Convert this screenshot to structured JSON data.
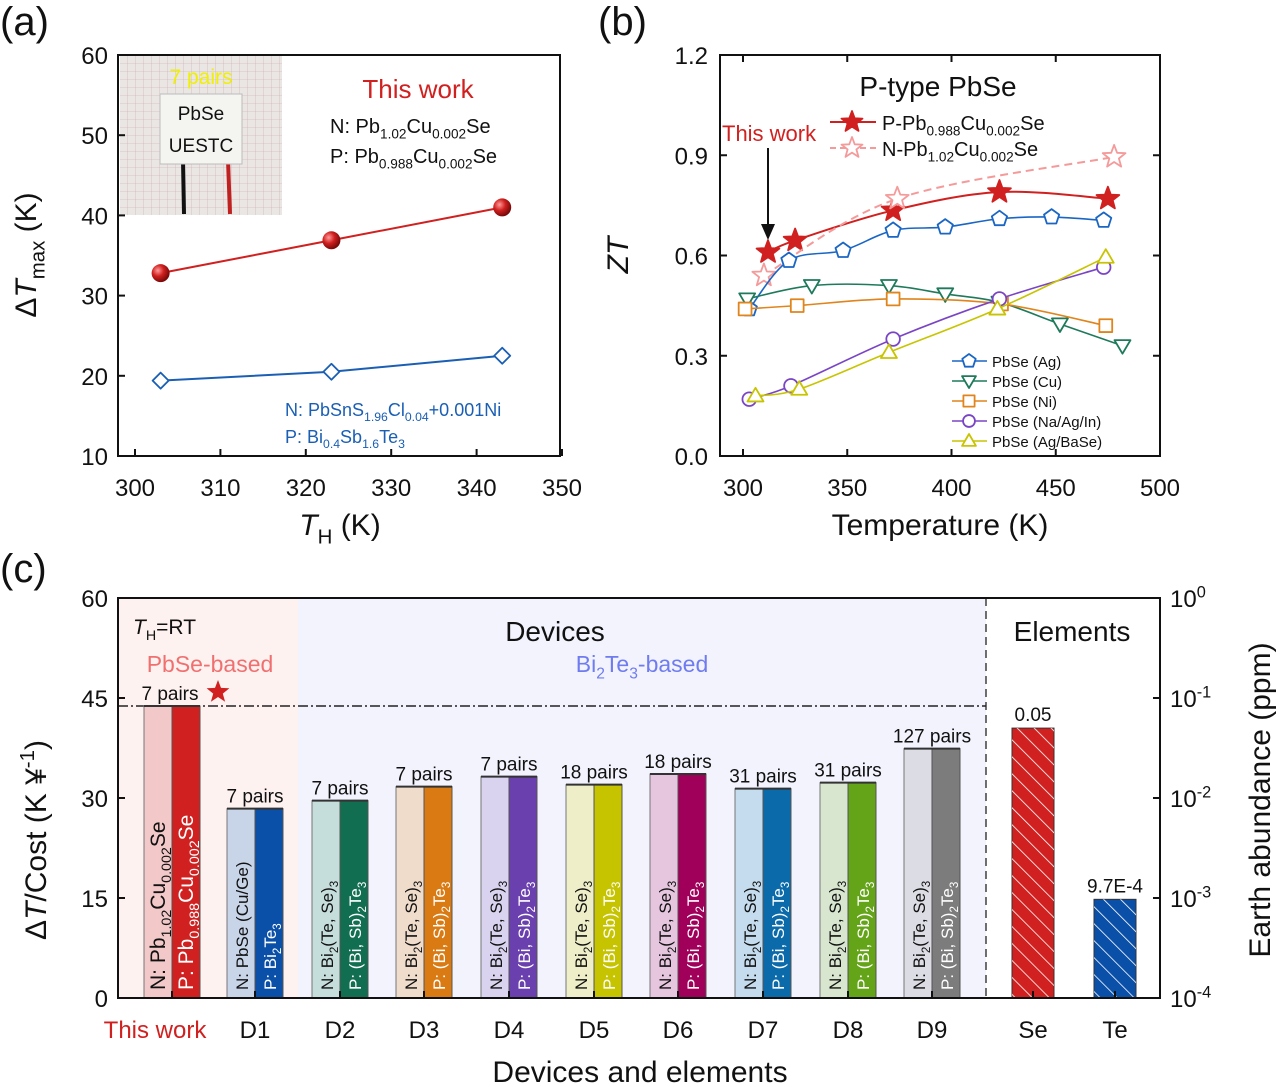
{
  "chart_data": [
    {
      "panel": "(a)",
      "type": "line",
      "xlabel": "/{T}_{H} (K)",
      "ylabel": "Δ/{T}_{max} (K)",
      "xlim": [
        300,
        350
      ],
      "xticks": [
        300,
        310,
        320,
        330,
        340,
        350
      ],
      "ylim": [
        10,
        60
      ],
      "yticks": [
        10,
        20,
        30,
        40,
        50,
        60
      ],
      "inset_photo": {
        "caption": "7 pairs",
        "card_text": [
          "PbSe",
          "UESTC"
        ]
      },
      "annotations": {
        "this_work": "This work",
        "red_n": "N: Pb_{1.02}Cu_{0.002}Se",
        "red_p": "P: Pb_{0.988}Cu_{0.002}Se",
        "blue_n": "N: PbSnS_{1.96}Cl_{0.04}+0.001Ni",
        "blue_p": "P: Bi_{0.4}Sb_{1.6}Te_{3}"
      },
      "series": [
        {
          "color": "#d0201f",
          "marker": "sphere",
          "x": [
            303,
            323,
            343
          ],
          "y": [
            32.8,
            36.9,
            41.0
          ]
        },
        {
          "color": "#1a5fb4",
          "marker": "diamond",
          "x": [
            303,
            323,
            343
          ],
          "y": [
            19.4,
            20.5,
            22.5
          ]
        }
      ]
    },
    {
      "panel": "(b)",
      "type": "line",
      "title": "P-type PbSe",
      "xlabel": "Temperature (K)",
      "ylabel": "/{ZT}",
      "xlim": [
        300,
        500
      ],
      "xticks": [
        300,
        350,
        400,
        450,
        500
      ],
      "ylim": [
        0,
        1.2
      ],
      "yticks": [
        "0.0",
        "0.3",
        "0.6",
        "0.9",
        "1.2"
      ],
      "annotation": "This work",
      "series": [
        {
          "name": "P-Pb_{0.988}Cu_{0.002}Se",
          "color": "#d0201f",
          "marker": "star-filled",
          "dash": false,
          "x": [
            312,
            325,
            372,
            423,
            475
          ],
          "y": [
            0.61,
            0.645,
            0.735,
            0.79,
            0.77
          ]
        },
        {
          "name": "N-Pb_{1.02}Cu_{0.002}Se",
          "color": "#f59a9a",
          "marker": "star-open",
          "dash": true,
          "x": [
            310,
            374,
            478
          ],
          "y": [
            0.54,
            0.77,
            0.895
          ]
        },
        {
          "name": "PbSe (Ag)",
          "color": "#1a66c4",
          "marker": "pentagon",
          "x": [
            303,
            322,
            348,
            372,
            397,
            423,
            448,
            473
          ],
          "y": [
            0.44,
            0.585,
            0.615,
            0.675,
            0.685,
            0.71,
            0.715,
            0.705
          ]
        },
        {
          "name": "PbSe (Cu)",
          "color": "#1e7a5a",
          "marker": "triangle-down",
          "x": [
            302,
            333,
            370,
            397,
            423,
            452,
            482
          ],
          "y": [
            0.47,
            0.51,
            0.51,
            0.485,
            0.46,
            0.395,
            0.33
          ]
        },
        {
          "name": "PbSe (Ni)",
          "color": "#e0841c",
          "marker": "square",
          "x": [
            301,
            326,
            372,
            424,
            474
          ],
          "y": [
            0.44,
            0.45,
            0.47,
            0.455,
            0.39
          ]
        },
        {
          "name": "PbSe (Na/Ag/In)",
          "color": "#7a45c4",
          "marker": "circle",
          "x": [
            303,
            323,
            372,
            423,
            473
          ],
          "y": [
            0.17,
            0.21,
            0.35,
            0.47,
            0.565
          ]
        },
        {
          "name": "PbSe (Ag/BaSe)",
          "color": "#c8c400",
          "marker": "triangle-up",
          "x": [
            306,
            327,
            370,
            422,
            474
          ],
          "y": [
            0.18,
            0.2,
            0.31,
            0.44,
            0.595
          ]
        }
      ]
    },
    {
      "panel": "(c)",
      "type": "bar",
      "xlabel": "Devices and elements",
      "ylabel": "Δ/{T}/Cost (K ¥^{-1})",
      "ylabel_right": "Earth abundance (ppm)",
      "ylim": [
        0,
        60
      ],
      "yticks": [
        0,
        15,
        30,
        45,
        60
      ],
      "ylim_right_log": [
        0.0001,
        1
      ],
      "yticks_right": [
        [
          "10",
          "0"
        ],
        [
          "10",
          "-1"
        ],
        [
          "10",
          "-2"
        ],
        [
          "10",
          "-3"
        ],
        [
          "10",
          "-4"
        ]
      ],
      "annotations": {
        "th": "/{T}_{H}=RT",
        "devices": "Devices",
        "elements": "Elements",
        "pbse_based": "PbSe-based",
        "bi2te3_based": "Bi_{2}Te_{3}-based",
        "reference_line_value": 43.8
      },
      "devices": [
        {
          "category": "This work",
          "value": 43.8,
          "pairs": "7 pairs",
          "n_label": "N: Pb_{1.02}Cu_{0.002}Se",
          "p_label": "P: Pb_{0.988}Cu_{0.002}Se",
          "n_color": "#f2c8c8",
          "p_color": "#d0201f"
        },
        {
          "category": "D1",
          "value": 28.4,
          "pairs": "7 pairs",
          "n_label": "N: PbSe (Cu/Ge)",
          "p_label": "P: Bi_{2}Te_{3}",
          "n_color": "#c8d4e8",
          "p_color": "#0a4fa8"
        },
        {
          "category": "D2",
          "value": 29.6,
          "pairs": "7 pairs",
          "n_label": "N: Bi_{2}(Te, Se)_{3}",
          "p_label": "P: (Bi, Sb)_{2}Te_{3}",
          "n_color": "#c6dedb",
          "p_color": "#126e50"
        },
        {
          "category": "D3",
          "value": 31.7,
          "pairs": "7 pairs",
          "n_label": "N: Bi_{2}(Te, Se)_{3}",
          "p_label": "P: (Bi, Sb)_{2}Te_{3}",
          "n_color": "#f0dccb",
          "p_color": "#d97a12"
        },
        {
          "category": "D4",
          "value": 33.2,
          "pairs": "7 pairs",
          "n_label": "N: Bi_{2}(Te, Se)_{3}",
          "p_label": "P: (Bi, Sb)_{2}Te_{3}",
          "n_color": "#d9d3ef",
          "p_color": "#6a3fae"
        },
        {
          "category": "D5",
          "value": 32.0,
          "pairs": "18 pairs",
          "n_label": "N: Bi_{2}(Te, Se)_{3}",
          "p_label": "P: (Bi, Sb)_{2}Te_{3}",
          "n_color": "#eeefc8",
          "p_color": "#c6c400"
        },
        {
          "category": "D6",
          "value": 33.6,
          "pairs": "18 pairs",
          "n_label": "N: Bi_{2}(Te, Se)_{3}",
          "p_label": "P: (Bi, Sb)_{2}Te_{3}",
          "n_color": "#e6c6de",
          "p_color": "#a0005a"
        },
        {
          "category": "D7",
          "value": 31.4,
          "pairs": "31 pairs",
          "n_label": "N: Bi_{2}(Te, Se)_{3}",
          "p_label": "P: (Bi, Sb)_{2}Te_{3}",
          "n_color": "#c4dcee",
          "p_color": "#0a6aaa"
        },
        {
          "category": "D8",
          "value": 32.3,
          "pairs": "31 pairs",
          "n_label": "N: Bi_{2}(Te, Se)_{3}",
          "p_label": "P: (Bi, Sb)_{2}Te_{3}",
          "n_color": "#d8e6d0",
          "p_color": "#63a418"
        },
        {
          "category": "D9",
          "value": 37.4,
          "pairs": "127 pairs",
          "n_label": "N: Bi_{2}(Te, Se)_{3}",
          "p_label": "P: (Bi, Sb)_{2}Te_{3}",
          "n_color": "#dcdce4",
          "p_color": "#7c7c7c"
        }
      ],
      "elements": [
        {
          "category": "Se",
          "abundance_ppm": 0.05,
          "label": "0.05",
          "color": "#d0201f"
        },
        {
          "category": "Te",
          "abundance_ppm": 0.00097,
          "label": "9.7E-4",
          "color": "#0a4fa8"
        }
      ]
    }
  ],
  "panel_labels": [
    "(a)",
    "(b)",
    "(c)"
  ]
}
